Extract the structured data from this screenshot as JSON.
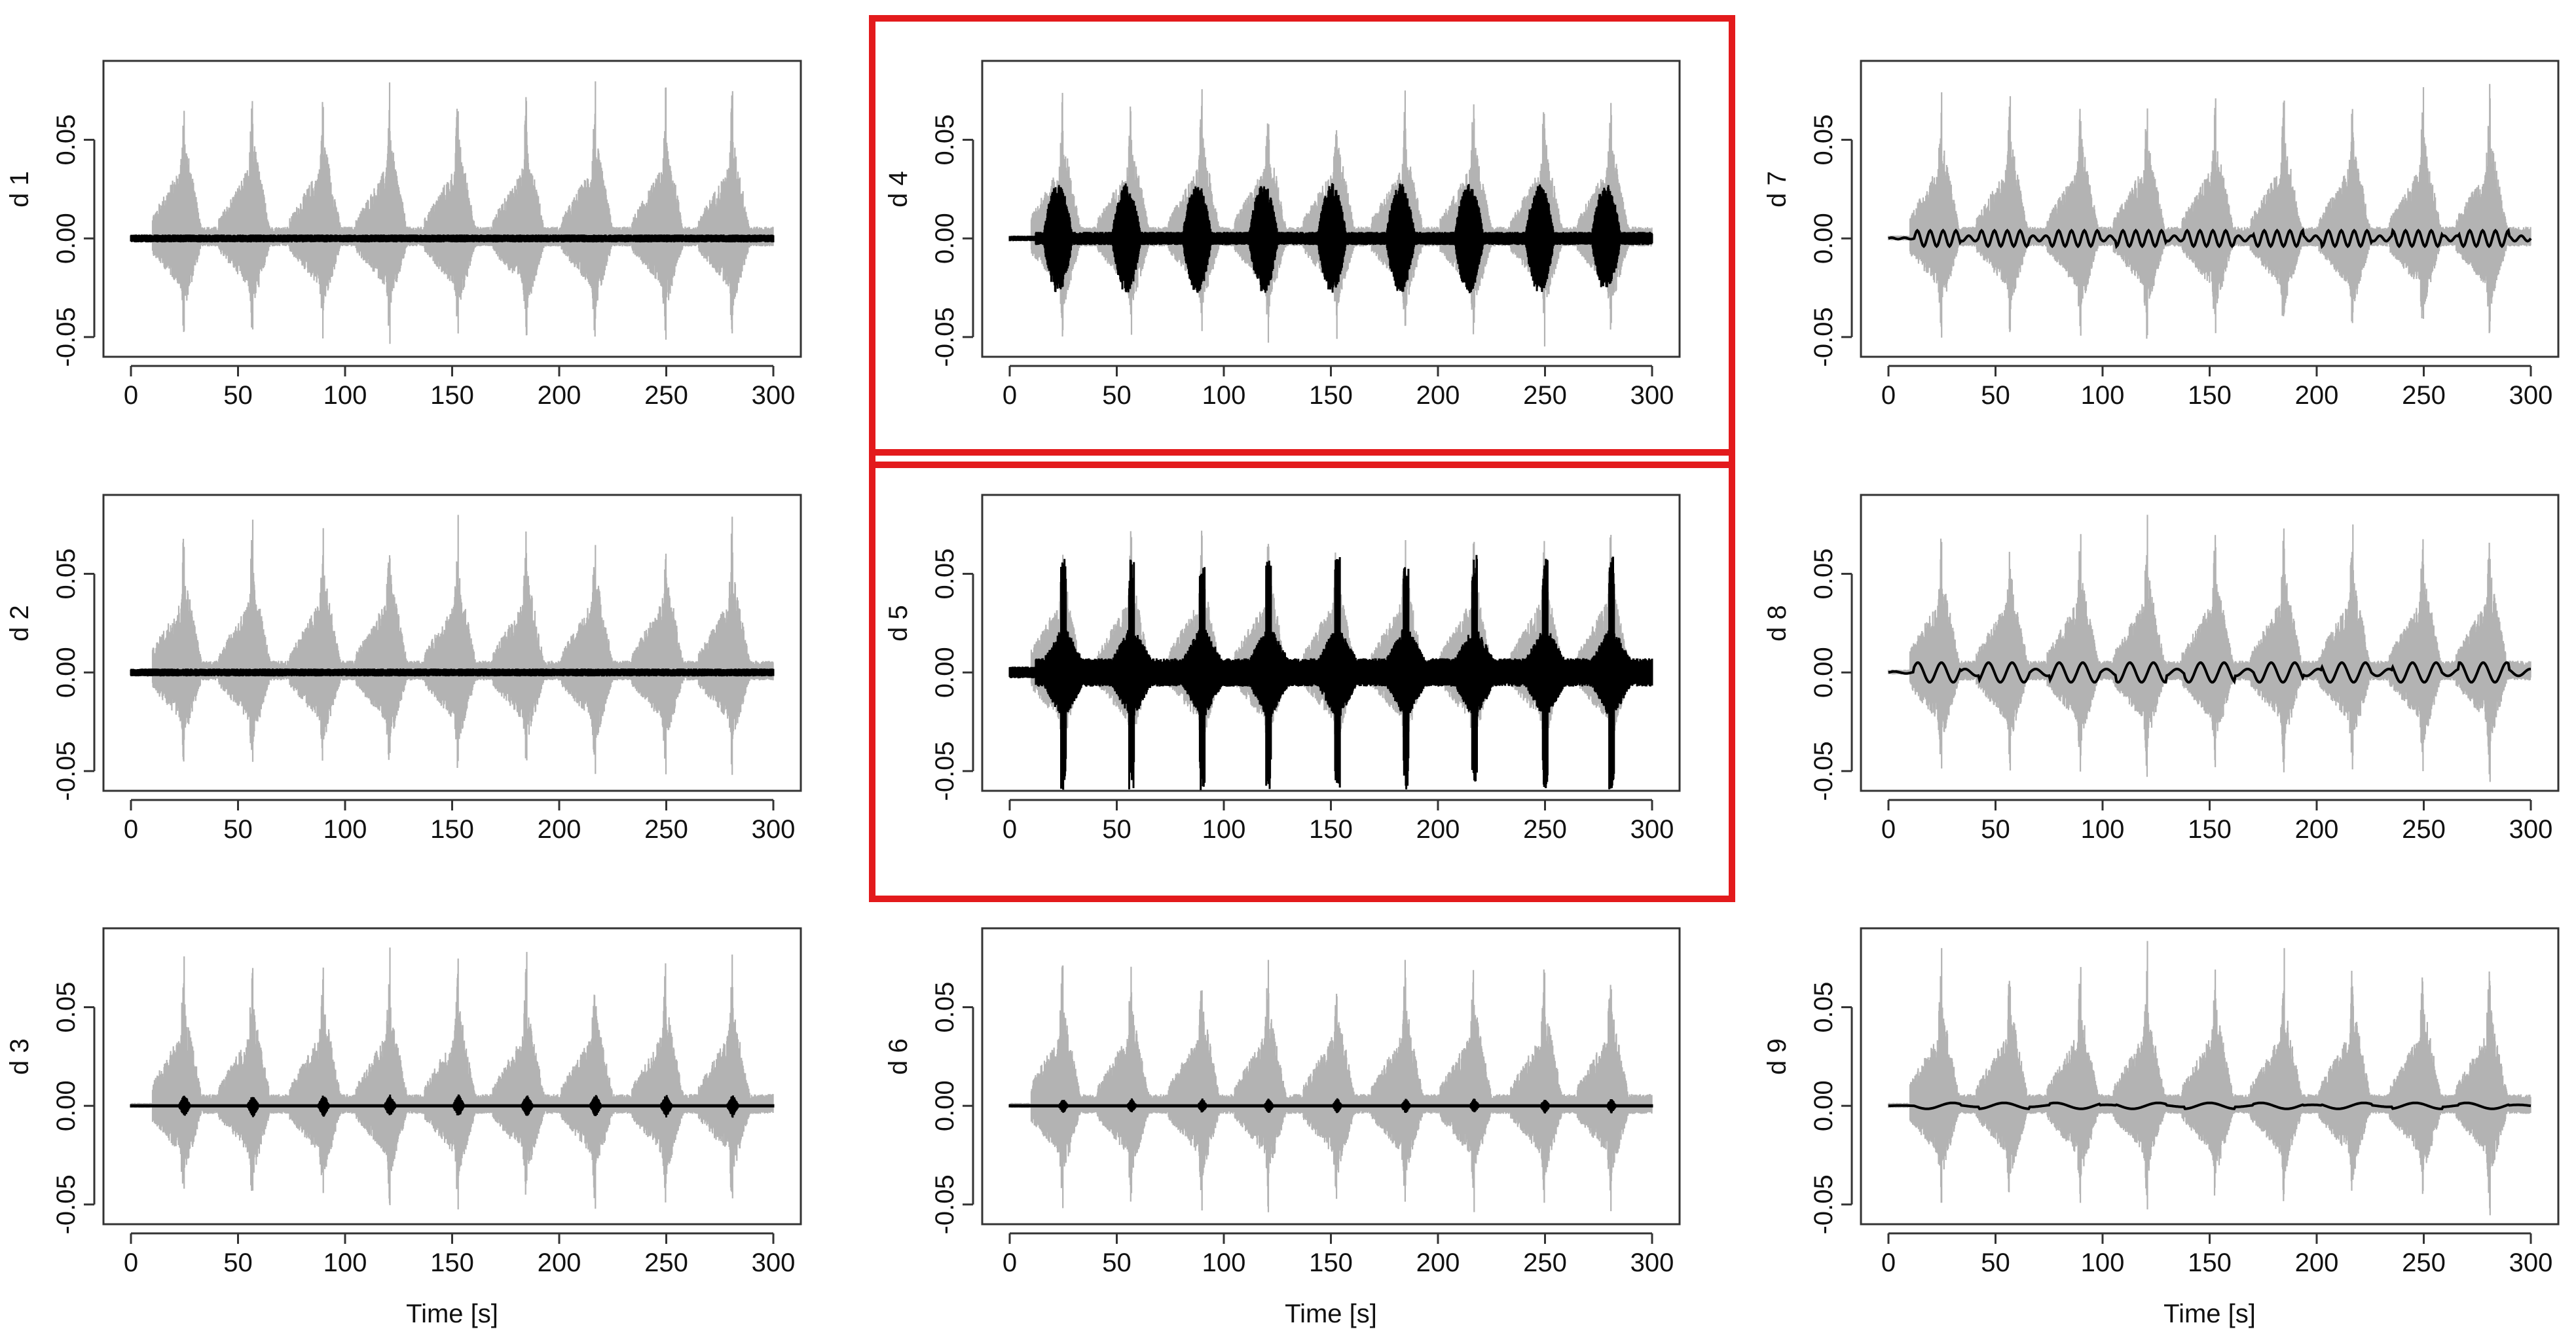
{
  "colors": {
    "original_signal": "#b3b3b3",
    "component": "#000000",
    "highlight": "#e31a1c"
  },
  "chart_data": [
    {
      "type": "line",
      "ylabel": "d 1",
      "xlabel": "",
      "xticks": [
        "0",
        "50",
        "100",
        "150",
        "200",
        "250",
        "300"
      ],
      "yticks": [
        "-0.05",
        "0.00",
        "0.05"
      ],
      "xlim": [
        0,
        300
      ],
      "ylim": [
        -0.06,
        0.09
      ],
      "grid": false,
      "highlighted": false,
      "series": [
        {
          "role": "original",
          "events_x": [
            25,
            57,
            90,
            121,
            153,
            185,
            217,
            250,
            281
          ],
          "peak_amplitude": 0.085
        },
        {
          "role": "component",
          "amplitude": 0.002,
          "pattern": "noise"
        }
      ]
    },
    {
      "type": "line",
      "ylabel": "d 2",
      "xlabel": "",
      "xticks": [
        "0",
        "50",
        "100",
        "150",
        "200",
        "250",
        "300"
      ],
      "yticks": [
        "-0.05",
        "0.00",
        "0.05"
      ],
      "xlim": [
        0,
        300
      ],
      "ylim": [
        -0.06,
        0.09
      ],
      "grid": false,
      "highlighted": false,
      "series": [
        {
          "role": "original",
          "events_x": [
            25,
            57,
            90,
            121,
            153,
            185,
            217,
            250,
            281
          ],
          "peak_amplitude": 0.085
        },
        {
          "role": "component",
          "amplitude": 0.002,
          "pattern": "noise"
        }
      ]
    },
    {
      "type": "line",
      "ylabel": "d 3",
      "xlabel": "Time [s]",
      "xticks": [
        "0",
        "50",
        "100",
        "150",
        "200",
        "250",
        "300"
      ],
      "yticks": [
        "-0.05",
        "0.00",
        "0.05"
      ],
      "xlim": [
        0,
        300
      ],
      "ylim": [
        -0.06,
        0.09
      ],
      "grid": false,
      "highlighted": false,
      "series": [
        {
          "role": "original",
          "events_x": [
            25,
            57,
            90,
            121,
            153,
            185,
            217,
            250,
            281
          ],
          "peak_amplitude": 0.085
        },
        {
          "role": "component",
          "amplitude": 0.006,
          "pattern": "bursts"
        }
      ]
    },
    {
      "type": "line",
      "ylabel": "d 4",
      "xlabel": "",
      "xticks": [
        "0",
        "50",
        "100",
        "150",
        "200",
        "250",
        "300"
      ],
      "yticks": [
        "-0.05",
        "0.00",
        "0.05"
      ],
      "xlim": [
        0,
        300
      ],
      "ylim": [
        -0.06,
        0.09
      ],
      "grid": false,
      "highlighted": true,
      "series": [
        {
          "role": "original",
          "events_x": [
            25,
            57,
            90,
            121,
            153,
            185,
            217,
            250,
            281
          ],
          "peak_amplitude": 0.085
        },
        {
          "role": "component",
          "amplitude": 0.028,
          "pattern": "wide-bursts"
        }
      ]
    },
    {
      "type": "line",
      "ylabel": "d 5",
      "xlabel": "",
      "xticks": [
        "0",
        "50",
        "100",
        "150",
        "200",
        "250",
        "300"
      ],
      "yticks": [
        "-0.05",
        "0.00",
        "0.05"
      ],
      "xlim": [
        0,
        300
      ],
      "ylim": [
        -0.06,
        0.09
      ],
      "grid": false,
      "highlighted": true,
      "series": [
        {
          "role": "original",
          "events_x": [
            25,
            57,
            90,
            121,
            153,
            185,
            217,
            250,
            281
          ],
          "peak_amplitude": 0.085
        },
        {
          "role": "component",
          "amplitude": 0.06,
          "pattern": "spikes"
        }
      ]
    },
    {
      "type": "line",
      "ylabel": "d 6",
      "xlabel": "Time [s]",
      "xticks": [
        "0",
        "50",
        "100",
        "150",
        "200",
        "250",
        "300"
      ],
      "yticks": [
        "-0.05",
        "0.00",
        "0.05"
      ],
      "xlim": [
        0,
        300
      ],
      "ylim": [
        -0.06,
        0.09
      ],
      "grid": false,
      "highlighted": false,
      "series": [
        {
          "role": "original",
          "events_x": [
            25,
            57,
            90,
            121,
            153,
            185,
            217,
            250,
            281
          ],
          "peak_amplitude": 0.085
        },
        {
          "role": "component",
          "amplitude": 0.004,
          "pattern": "small-bursts"
        }
      ]
    },
    {
      "type": "line",
      "ylabel": "d 7",
      "xlabel": "",
      "xticks": [
        "0",
        "50",
        "100",
        "150",
        "200",
        "250",
        "300"
      ],
      "yticks": [
        "-0.05",
        "0.00",
        "0.05"
      ],
      "xlim": [
        0,
        300
      ],
      "ylim": [
        -0.06,
        0.09
      ],
      "grid": false,
      "highlighted": false,
      "series": [
        {
          "role": "original",
          "events_x": [
            25,
            57,
            90,
            121,
            153,
            185,
            217,
            250,
            281
          ],
          "peak_amplitude": 0.085
        },
        {
          "role": "component",
          "amplitude": 0.004,
          "pattern": "wiggle",
          "period": 6
        }
      ]
    },
    {
      "type": "line",
      "ylabel": "d 8",
      "xlabel": "",
      "xticks": [
        "0",
        "50",
        "100",
        "150",
        "200",
        "250",
        "300"
      ],
      "yticks": [
        "-0.05",
        "0.00",
        "0.05"
      ],
      "xlim": [
        0,
        300
      ],
      "ylim": [
        -0.06,
        0.09
      ],
      "grid": false,
      "highlighted": false,
      "series": [
        {
          "role": "original",
          "events_x": [
            25,
            57,
            90,
            121,
            153,
            185,
            217,
            250,
            281
          ],
          "peak_amplitude": 0.085
        },
        {
          "role": "component",
          "amplitude": 0.005,
          "pattern": "wiggle",
          "period": 11
        }
      ]
    },
    {
      "type": "line",
      "ylabel": "d 9",
      "xlabel": "Time [s]",
      "xticks": [
        "0",
        "50",
        "100",
        "150",
        "200",
        "250",
        "300"
      ],
      "yticks": [
        "-0.05",
        "0.00",
        "0.05"
      ],
      "xlim": [
        0,
        300
      ],
      "ylim": [
        -0.06,
        0.09
      ],
      "grid": false,
      "highlighted": false,
      "series": [
        {
          "role": "original",
          "events_x": [
            25,
            57,
            90,
            121,
            153,
            185,
            217,
            250,
            281
          ],
          "peak_amplitude": 0.085
        },
        {
          "role": "component",
          "amplitude": 0.0015,
          "pattern": "wiggle",
          "period": 24
        }
      ]
    }
  ]
}
